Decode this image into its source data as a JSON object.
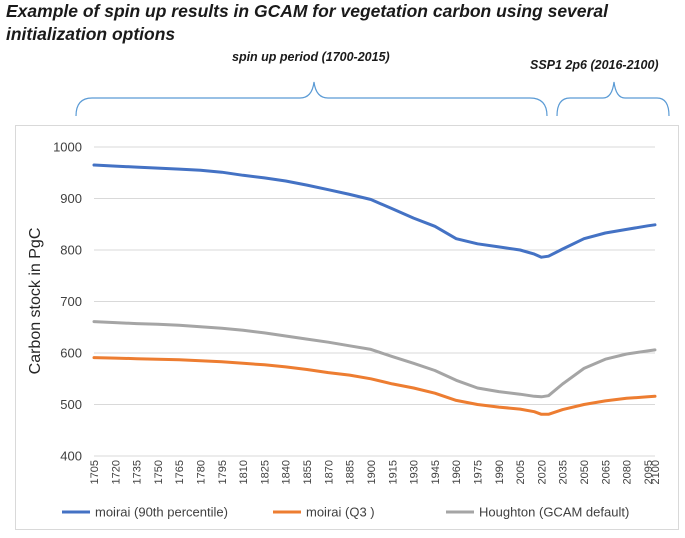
{
  "title": "Example of spin up results in GCAM for vegetation carbon using several initialization options",
  "annotations": {
    "spinup": "spin up period (1700-2015)",
    "ssp": "SSP1 2p6  (2016-2100)"
  },
  "colors": {
    "bracket": "#5b9bd5",
    "grid": "#d9d9d9"
  },
  "chart_data": {
    "type": "line",
    "title": "Example of spin up results in GCAM for vegetation carbon using several initialization options",
    "ylabel": "Carbon stock in PgC",
    "xlabel": "",
    "ylim": [
      400,
      1000
    ],
    "yticks": [
      400,
      500,
      600,
      700,
      800,
      900,
      1000
    ],
    "xlim": [
      1705,
      2100
    ],
    "x_tick_labels": [
      1705,
      1720,
      1735,
      1750,
      1765,
      1780,
      1795,
      1810,
      1825,
      1840,
      1855,
      1870,
      1885,
      1900,
      1915,
      1930,
      1945,
      1960,
      1975,
      1990,
      2005,
      2020,
      2035,
      2050,
      2065,
      2080,
      2095,
      2100
    ],
    "x": [
      1705,
      1720,
      1735,
      1750,
      1765,
      1780,
      1795,
      1810,
      1825,
      1840,
      1855,
      1870,
      1885,
      1900,
      1915,
      1930,
      1945,
      1960,
      1975,
      1990,
      2005,
      2015,
      2020,
      2025,
      2035,
      2050,
      2065,
      2080,
      2095,
      2100
    ],
    "series": [
      {
        "name": "moirai (90th percentile)",
        "color": "#4472c4",
        "values": [
          965,
          963,
          961,
          959,
          957,
          955,
          951,
          945,
          940,
          934,
          926,
          917,
          908,
          898,
          880,
          862,
          846,
          822,
          812,
          806,
          800,
          792,
          786,
          788,
          802,
          822,
          833,
          840,
          847,
          849
        ]
      },
      {
        "name": "moirai (Q3 )",
        "color": "#ed7d31",
        "values": [
          591,
          590,
          589,
          588,
          587,
          585,
          583,
          580,
          577,
          573,
          568,
          562,
          557,
          550,
          540,
          532,
          522,
          508,
          500,
          495,
          491,
          486,
          481,
          481,
          490,
          500,
          507,
          512,
          515,
          516
        ]
      },
      {
        "name": "Houghton (GCAM default)",
        "color": "#a5a5a5",
        "values": [
          661,
          659,
          657,
          656,
          654,
          651,
          648,
          644,
          639,
          633,
          627,
          621,
          614,
          607,
          593,
          580,
          566,
          547,
          532,
          525,
          520,
          516,
          515,
          517,
          540,
          570,
          588,
          598,
          604,
          606
        ]
      }
    ],
    "legend_position": "bottom"
  }
}
